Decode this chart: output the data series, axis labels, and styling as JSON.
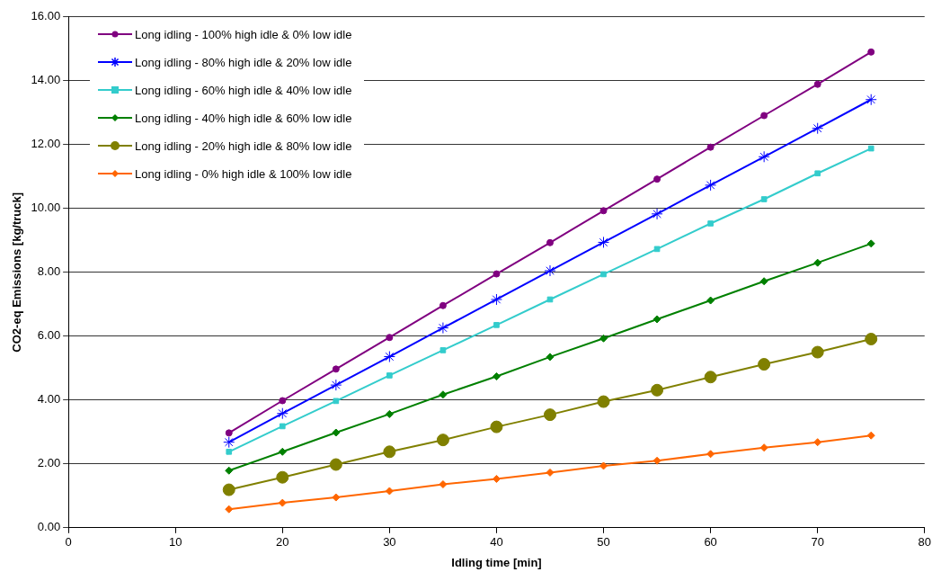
{
  "chart_data": {
    "type": "line",
    "xlabel": "Idling time [min]",
    "ylabel": "CO2-eq Emissions [kg/truck]",
    "x": [
      15,
      20,
      25,
      30,
      35,
      40,
      45,
      50,
      55,
      60,
      65,
      70,
      75
    ],
    "xlim": [
      0,
      80
    ],
    "xticks": [
      0,
      10,
      20,
      30,
      40,
      50,
      60,
      70,
      80
    ],
    "ylim": [
      0,
      16
    ],
    "yticks": [
      {
        "value": 0,
        "label": "0.00"
      },
      {
        "value": 2,
        "label": "2.00"
      },
      {
        "value": 4,
        "label": "4.00"
      },
      {
        "value": 6,
        "label": "6.00"
      },
      {
        "value": 8,
        "label": "8.00"
      },
      {
        "value": 10,
        "label": "10.00"
      },
      {
        "value": 12,
        "label": "12.00"
      },
      {
        "value": 14,
        "label": "14.00"
      },
      {
        "value": 16,
        "label": "16.00"
      }
    ],
    "grid": "y",
    "legend": "top left",
    "line_style": "solid",
    "series": [
      {
        "name": "Long idling - 100% high idle & 0% low idle",
        "color": "#800080",
        "marker": "circle",
        "values": [
          2.97,
          3.98,
          4.97,
          5.96,
          6.96,
          7.95,
          8.93,
          9.93,
          10.92,
          11.92,
          12.91,
          13.89,
          14.9
        ]
      },
      {
        "name": "Long idling - 80% high idle & 20% low idle",
        "color": "#0000ff",
        "marker": "cross",
        "values": [
          2.68,
          3.58,
          4.47,
          5.36,
          6.26,
          7.15,
          8.05,
          8.94,
          9.83,
          10.73,
          11.62,
          12.51,
          13.41
        ]
      },
      {
        "name": "Long idling - 60% high idle & 40% low idle",
        "color": "#33cccc",
        "marker": "square",
        "values": [
          2.38,
          3.18,
          3.97,
          4.77,
          5.56,
          6.35,
          7.15,
          7.94,
          8.73,
          9.53,
          10.29,
          11.1,
          11.88
        ]
      },
      {
        "name": "Long idling - 40% high idle & 60% low idle",
        "color": "#008000",
        "marker": "diamond",
        "values": [
          1.79,
          2.38,
          2.98,
          3.56,
          4.17,
          4.74,
          5.35,
          5.93,
          6.53,
          7.12,
          7.72,
          8.3,
          8.9
        ]
      },
      {
        "name": "Long idling - 20% high idle & 80% low idle",
        "color": "#808000",
        "marker": "circle",
        "values": [
          1.19,
          1.58,
          1.98,
          2.38,
          2.75,
          3.16,
          3.54,
          3.95,
          4.31,
          4.72,
          5.12,
          5.5,
          5.91
        ]
      },
      {
        "name": "Long idling - 0% high idle & 100% low idle",
        "color": "#ff6600",
        "marker": "diamond",
        "values": [
          0.58,
          0.78,
          0.95,
          1.15,
          1.36,
          1.53,
          1.73,
          1.94,
          2.1,
          2.31,
          2.51,
          2.68,
          2.89
        ]
      }
    ]
  }
}
